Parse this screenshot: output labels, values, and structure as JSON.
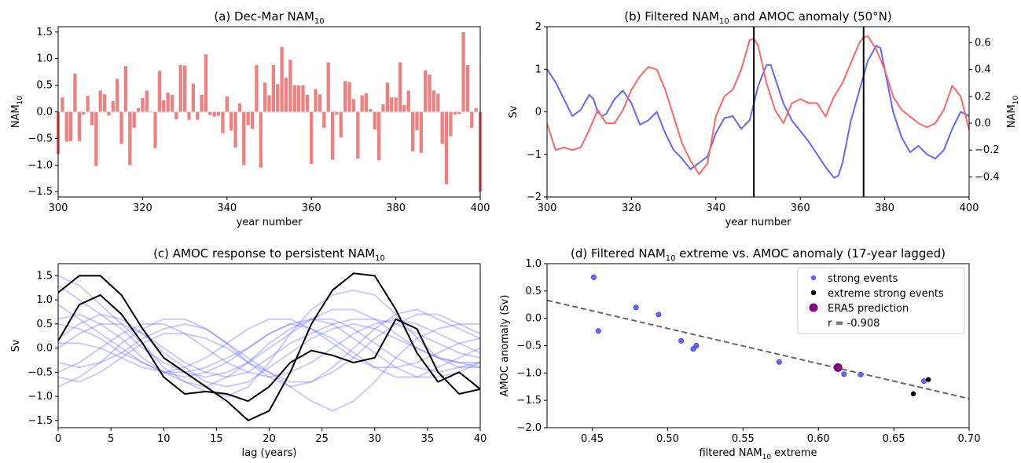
{
  "chart_data": [
    {
      "id": "a",
      "type": "bar",
      "title": "(a) Dec-Mar NAM",
      "title_sub": "10",
      "xlabel": "year number",
      "ylabel": "NAM",
      "ylabel_sub": "10",
      "xlim": [
        300,
        400
      ],
      "ylim": [
        -1.6,
        1.6
      ],
      "xticks": [
        300,
        320,
        340,
        360,
        380,
        400
      ],
      "yticks": [
        -1.5,
        -1.0,
        -0.5,
        0.0,
        0.5,
        1.0,
        1.5
      ],
      "bar_color": "#f08080",
      "x": [
        300,
        301,
        302,
        303,
        304,
        305,
        306,
        307,
        308,
        309,
        310,
        311,
        312,
        313,
        314,
        315,
        316,
        317,
        318,
        319,
        320,
        321,
        322,
        323,
        324,
        325,
        326,
        327,
        328,
        329,
        330,
        331,
        332,
        333,
        334,
        335,
        336,
        337,
        338,
        339,
        340,
        341,
        342,
        343,
        344,
        345,
        346,
        347,
        348,
        349,
        350,
        351,
        352,
        353,
        354,
        355,
        356,
        357,
        358,
        359,
        360,
        361,
        362,
        363,
        364,
        365,
        366,
        367,
        368,
        369,
        370,
        371,
        372,
        373,
        374,
        375,
        376,
        377,
        378,
        379,
        380,
        381,
        382,
        383,
        384,
        385,
        386,
        387,
        388,
        389,
        390,
        391,
        392,
        393,
        394,
        395,
        396,
        397,
        398,
        399,
        400
      ],
      "values": [
        -0.79,
        0.27,
        -0.56,
        -0.55,
        0.72,
        -0.55,
        -0.05,
        0.3,
        -0.25,
        -1.02,
        0.4,
        0.33,
        -0.07,
        0.2,
        0.62,
        -0.6,
        0.86,
        -1.0,
        -0.3,
        0.07,
        0.26,
        0.4,
        0.0,
        -0.68,
        0.77,
        0.22,
        0.36,
        0.32,
        -0.14,
        0.88,
        0.87,
        -0.15,
        0.53,
        -0.15,
        0.32,
        1.08,
        -0.06,
        -0.09,
        -0.07,
        -0.4,
        0.29,
        -0.35,
        -0.67,
        0.16,
        -1.0,
        -0.25,
        -0.32,
        0.88,
        -1.05,
        0.55,
        0.31,
        0.88,
        0.52,
        1.22,
        0.64,
        0.98,
        0.5,
        0.5,
        0.5,
        0.32,
        -0.98,
        0.43,
        0.33,
        -0.3,
        0.93,
        -0.9,
        -0.05,
        -0.48,
        0.58,
        0.56,
        0.24,
        -0.88,
        0.31,
        0.35,
        0.05,
        -0.33,
        -0.91,
        0.14,
        0.55,
        0.27,
        0.27,
        0.93,
        0.13,
        0.4,
        -0.74,
        -0.35,
        -0.77,
        0.78,
        0.7,
        0.4,
        0.34,
        -0.6,
        -1.36,
        -0.46,
        -0.05,
        -0.04,
        1.5,
        0.88,
        -0.3,
        0.07,
        -1.5
      ]
    },
    {
      "id": "b",
      "type": "line",
      "title": "(b) Filtered NAM",
      "title_sub": "10",
      "title_suffix": " and AMOC anomaly (50°N)",
      "xlabel": "year number",
      "ylabel_left": "Sv",
      "ylabel_right": "NAM",
      "ylabel_right_sub": "10",
      "xlim": [
        300,
        400
      ],
      "ylim_left": [
        -2,
        2
      ],
      "ylim_right": [
        -0.55,
        0.72
      ],
      "xticks": [
        300,
        320,
        340,
        360,
        380,
        400
      ],
      "yticks_left": [
        -2,
        -1,
        0,
        1,
        2
      ],
      "yticks_right": [
        -0.4,
        -0.2,
        0.0,
        0.2,
        0.4,
        0.6
      ],
      "vlines": [
        349,
        375
      ],
      "series": [
        {
          "axis": "left",
          "color": "#6666ff",
          "x": [
            300,
            302,
            304,
            306,
            308,
            310,
            311,
            312,
            313,
            314,
            316,
            318,
            320,
            322,
            324,
            326,
            328,
            330,
            332,
            334,
            336,
            338,
            340,
            342,
            344,
            346,
            348,
            350,
            352,
            353,
            354,
            356,
            358,
            360,
            362,
            364,
            366,
            368,
            369,
            370,
            372,
            374,
            376,
            378,
            379,
            380,
            382,
            384,
            386,
            388,
            390,
            392,
            394,
            396,
            398,
            400
          ],
          "values": [
            1.0,
            0.7,
            0.3,
            -0.1,
            0.05,
            0.4,
            0.3,
            0.0,
            -0.1,
            -0.05,
            0.3,
            0.5,
            0.2,
            -0.3,
            -0.2,
            0.0,
            -0.5,
            -0.9,
            -1.1,
            -1.35,
            -1.2,
            -1.05,
            -0.5,
            -0.15,
            -0.1,
            -0.4,
            -0.2,
            0.6,
            1.1,
            1.1,
            0.8,
            0.2,
            -0.2,
            -0.45,
            -0.7,
            -1.0,
            -1.3,
            -1.55,
            -1.5,
            -1.2,
            -0.2,
            0.5,
            1.2,
            1.55,
            1.5,
            1.0,
            0.0,
            -0.6,
            -0.95,
            -0.8,
            -1.0,
            -1.1,
            -0.9,
            -0.4,
            0.0,
            -0.1
          ]
        },
        {
          "axis": "right",
          "color": "#ff6666",
          "x": [
            300,
            302,
            304,
            306,
            308,
            310,
            312,
            314,
            316,
            318,
            320,
            322,
            324,
            326,
            328,
            330,
            332,
            334,
            336,
            338,
            340,
            342,
            344,
            346,
            348,
            349,
            350,
            352,
            354,
            356,
            358,
            360,
            362,
            364,
            366,
            368,
            370,
            372,
            374,
            375,
            376,
            378,
            380,
            382,
            384,
            386,
            388,
            390,
            392,
            394,
            396,
            398,
            400
          ],
          "values": [
            0.0,
            -0.2,
            -0.18,
            -0.2,
            -0.18,
            -0.05,
            0.1,
            0.0,
            0.0,
            0.1,
            0.25,
            0.35,
            0.42,
            0.4,
            0.25,
            0.05,
            -0.15,
            -0.28,
            -0.38,
            -0.3,
            0.05,
            0.2,
            0.25,
            0.4,
            0.62,
            0.63,
            0.58,
            0.3,
            0.1,
            0.0,
            0.15,
            0.18,
            0.15,
            0.15,
            0.05,
            0.2,
            0.3,
            0.45,
            0.6,
            0.64,
            0.65,
            0.55,
            0.4,
            0.2,
            0.1,
            0.05,
            0.0,
            -0.03,
            0.0,
            0.1,
            0.28,
            0.2,
            -0.05
          ]
        }
      ]
    },
    {
      "id": "c",
      "type": "line",
      "title": "(c) AMOC response to persistent NAM",
      "title_sub": "10",
      "xlabel": "lag (years)",
      "ylabel": "Sv",
      "xlim": [
        0,
        40
      ],
      "ylim": [
        -1.65,
        1.75
      ],
      "xticks": [
        0,
        5,
        10,
        15,
        20,
        25,
        30,
        35,
        40
      ],
      "yticks": [
        -1.5,
        -1.0,
        -0.5,
        0.0,
        0.5,
        1.0,
        1.5
      ],
      "x": [
        0,
        2,
        4,
        6,
        8,
        10,
        12,
        14,
        16,
        18,
        20,
        22,
        24,
        26,
        28,
        30,
        32,
        34,
        36,
        38,
        40
      ],
      "series": [
        {
          "style": "faint",
          "values": [
            1.5,
            1.3,
            0.9,
            0.5,
            0.1,
            -0.4,
            -0.7,
            -0.9,
            -1.0,
            -0.8,
            -0.3,
            0.3,
            0.8,
            1.1,
            1.2,
            1.1,
            0.7,
            0.2,
            -0.2,
            -0.4,
            -0.4
          ]
        },
        {
          "style": "faint",
          "values": [
            1.3,
            1.0,
            0.7,
            0.4,
            0.0,
            -0.3,
            -0.5,
            -0.6,
            -0.5,
            -0.3,
            0.0,
            0.3,
            0.6,
            0.8,
            0.8,
            0.6,
            0.3,
            0.0,
            -0.2,
            -0.3,
            -0.3
          ]
        },
        {
          "style": "faint",
          "values": [
            0.6,
            0.7,
            0.5,
            0.2,
            -0.2,
            -0.5,
            -0.7,
            -0.8,
            -0.6,
            -0.3,
            0.1,
            0.4,
            0.6,
            0.6,
            0.4,
            0.1,
            -0.2,
            -0.4,
            -0.5,
            -0.4,
            -0.3
          ]
        },
        {
          "style": "faint",
          "values": [
            0.2,
            0.5,
            0.7,
            0.6,
            0.3,
            0.0,
            -0.3,
            -0.5,
            -0.6,
            -0.5,
            -0.2,
            0.1,
            0.3,
            0.5,
            0.6,
            0.6,
            0.5,
            0.3,
            0.1,
            -0.1,
            -0.2
          ]
        },
        {
          "style": "faint",
          "values": [
            -0.5,
            -0.3,
            0.0,
            0.3,
            0.5,
            0.5,
            0.3,
            0.0,
            -0.3,
            -0.5,
            -0.6,
            -0.5,
            -0.3,
            0.0,
            0.3,
            0.5,
            0.6,
            0.5,
            0.3,
            0.1,
            -0.1
          ]
        },
        {
          "style": "faint",
          "values": [
            -0.8,
            -0.6,
            -0.3,
            0.1,
            0.4,
            0.6,
            0.6,
            0.4,
            0.1,
            -0.3,
            -0.6,
            -0.8,
            -0.7,
            -0.4,
            0.0,
            0.4,
            0.7,
            0.8,
            0.6,
            0.4,
            0.2
          ]
        },
        {
          "style": "faint",
          "values": [
            0.0,
            0.3,
            0.5,
            0.5,
            0.3,
            -0.1,
            -0.4,
            -0.7,
            -0.8,
            -0.7,
            -0.4,
            -0.1,
            0.2,
            0.4,
            0.5,
            0.4,
            0.2,
            0.0,
            -0.2,
            -0.3,
            -0.4
          ]
        },
        {
          "style": "faint",
          "values": [
            -0.3,
            -0.4,
            -0.3,
            -0.1,
            0.2,
            0.4,
            0.5,
            0.4,
            0.1,
            -0.2,
            -0.5,
            -0.7,
            -0.7,
            -0.5,
            -0.2,
            0.2,
            0.5,
            0.7,
            0.7,
            0.5,
            0.3
          ]
        },
        {
          "style": "faint",
          "values": [
            0.5,
            0.4,
            0.2,
            -0.1,
            -0.3,
            -0.5,
            -0.5,
            -0.4,
            -0.2,
            0.0,
            0.3,
            0.5,
            0.6,
            0.5,
            0.2,
            -0.1,
            -0.4,
            -0.6,
            -0.6,
            -0.5,
            -0.3
          ]
        },
        {
          "style": "faint",
          "values": [
            -0.6,
            -0.7,
            -0.5,
            -0.2,
            0.1,
            0.3,
            0.3,
            0.2,
            0.0,
            -0.3,
            -0.5,
            -0.8,
            -1.1,
            -1.3,
            -1.1,
            -0.7,
            -0.2,
            0.2,
            0.4,
            0.5,
            0.5
          ]
        },
        {
          "style": "faint",
          "values": [
            0.9,
            0.6,
            0.3,
            0.0,
            -0.3,
            -0.5,
            -0.6,
            -0.5,
            -0.3,
            0.0,
            0.3,
            0.5,
            0.4,
            0.2,
            -0.1,
            -0.4,
            -0.6,
            -0.6,
            -0.4,
            -0.2,
            0.0
          ]
        },
        {
          "style": "faint",
          "values": [
            0.1,
            0.1,
            0.0,
            -0.2,
            -0.4,
            -0.5,
            -0.4,
            -0.2,
            0.1,
            0.4,
            0.6,
            0.6,
            0.4,
            0.1,
            -0.2,
            -0.4,
            -0.4,
            -0.3,
            -0.1,
            0.1,
            0.2
          ]
        },
        {
          "style": "bold",
          "values": [
            1.15,
            1.5,
            1.5,
            1.1,
            0.4,
            -0.2,
            -0.5,
            -0.8,
            -1.1,
            -1.5,
            -1.3,
            -0.5,
            0.5,
            1.2,
            1.55,
            1.5,
            0.8,
            -0.1,
            -0.7,
            -0.5,
            -0.85
          ]
        },
        {
          "style": "bold",
          "values": [
            0.15,
            0.9,
            1.1,
            0.7,
            0.1,
            -0.6,
            -0.95,
            -0.9,
            -0.95,
            -1.1,
            -0.8,
            -0.3,
            -0.05,
            -0.15,
            -0.3,
            -0.2,
            0.6,
            0.4,
            -0.5,
            -0.95,
            -0.85
          ]
        }
      ]
    },
    {
      "id": "d",
      "type": "scatter",
      "title": "(d) Filtered NAM",
      "title_sub": "10",
      "title_suffix": " extreme vs. AMOC anomaly (17-year lagged)",
      "xlabel": "filtered NAM",
      "xlabel_sub": "10",
      "xlabel_suffix": " extreme",
      "ylabel": "AMOC anomaly (Sv)",
      "xlim": [
        0.42,
        0.7
      ],
      "ylim": [
        -2.0,
        1.0
      ],
      "xticks": [
        0.45,
        0.5,
        0.55,
        0.6,
        0.65,
        0.7
      ],
      "xtick_labels": [
        "0.45",
        "0.50",
        "0.55",
        "0.60",
        "0.65",
        "0.70"
      ],
      "yticks": [
        -2.0,
        -1.5,
        -1.0,
        -0.5,
        0.0,
        0.5,
        1.0
      ],
      "ytick_labels": [
        "−2.0",
        "−1.5",
        "−1.0",
        "−0.5",
        "0.0",
        "0.5",
        "1.0"
      ],
      "strong_events": {
        "label": "strong events",
        "color": "#6666ff",
        "x": [
          0.451,
          0.454,
          0.479,
          0.494,
          0.509,
          0.517,
          0.519,
          0.574,
          0.617,
          0.628,
          0.67
        ],
        "y": [
          0.75,
          -0.23,
          0.2,
          0.07,
          -0.41,
          -0.56,
          -0.5,
          -0.8,
          -1.02,
          -1.03,
          -1.15
        ]
      },
      "extreme_events": {
        "label": "extreme strong events",
        "color": "#000000",
        "x": [
          0.663,
          0.673
        ],
        "y": [
          -1.38,
          -1.12
        ]
      },
      "era5": {
        "label": "ERA5 prediction",
        "color": "#800080",
        "x": 0.613,
        "y": -0.9
      },
      "fit_line": {
        "x": [
          0.42,
          0.7
        ],
        "y": [
          0.33,
          -1.47
        ],
        "color": "#666666"
      },
      "r_text": "r = -0.908",
      "legend_position": "upper right"
    }
  ]
}
